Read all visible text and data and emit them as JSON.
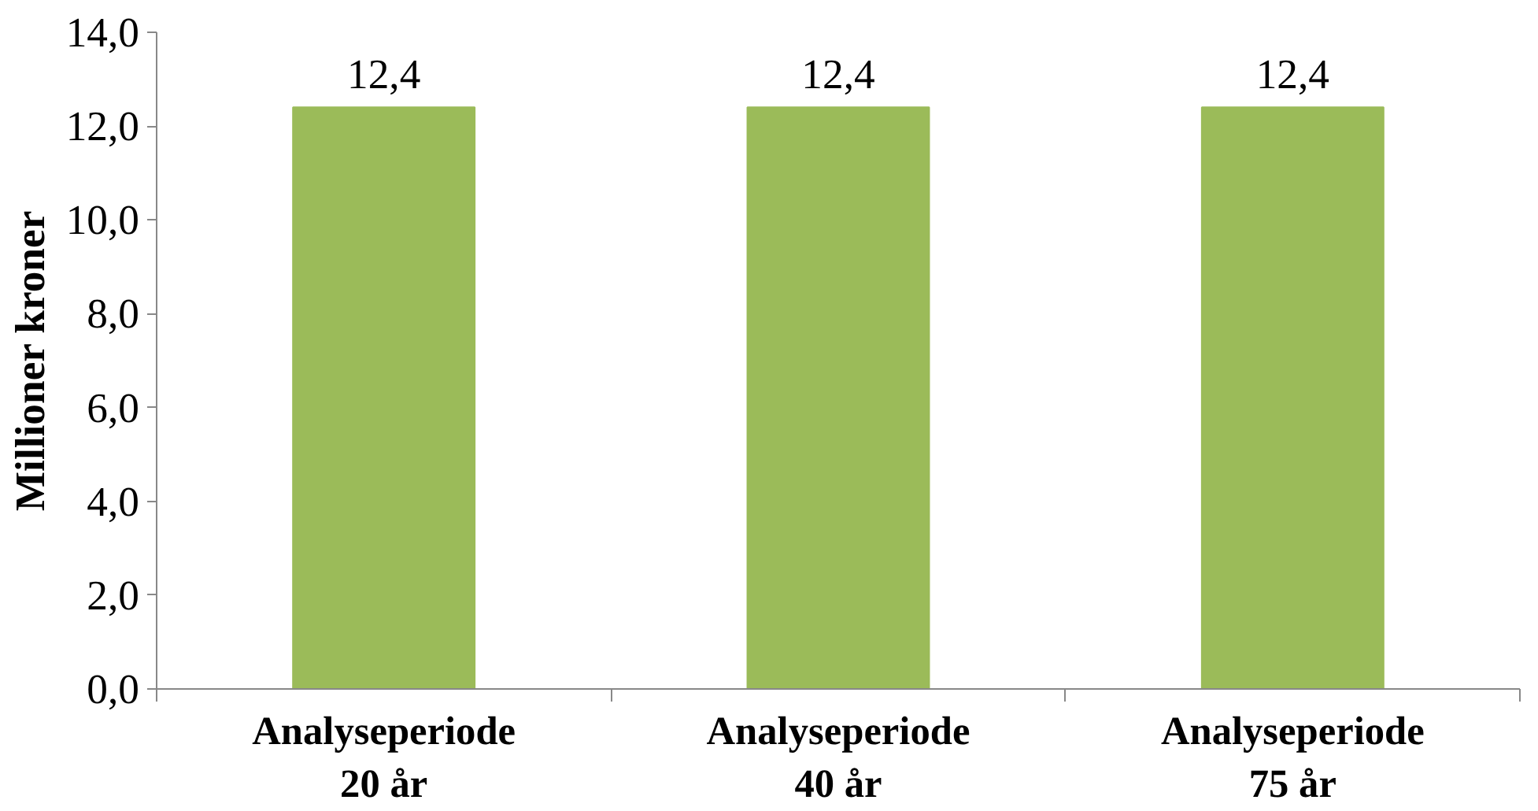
{
  "chart_data": {
    "type": "bar",
    "ylabel": "Millioner kroner",
    "categories": [
      "Analyseperiode\n20 år",
      "Analyseperiode\n40 år",
      "Analyseperiode\n75 år"
    ],
    "values": [
      12.4,
      12.4,
      12.4
    ],
    "color": "#9bbb59",
    "value_labels": [
      "12,4",
      "12,4",
      "12,4"
    ],
    "ylim": [
      0,
      14
    ],
    "yticks": [
      {
        "value": 0,
        "label": "0,0"
      },
      {
        "value": 2,
        "label": "2,0"
      },
      {
        "value": 4,
        "label": "4,0"
      },
      {
        "value": 6,
        "label": "6,0"
      },
      {
        "value": 8,
        "label": "8,0"
      },
      {
        "value": 10,
        "label": "10,0"
      },
      {
        "value": 12,
        "label": "12,0"
      },
      {
        "value": 14,
        "label": "14,0"
      }
    ],
    "grid": false
  }
}
